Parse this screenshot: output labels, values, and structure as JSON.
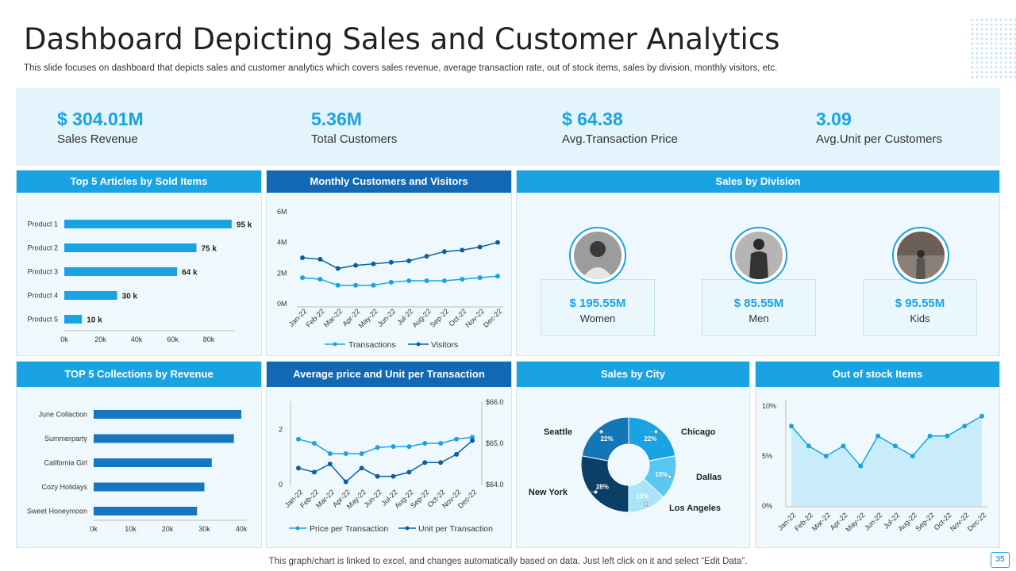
{
  "header": {
    "title": "Dashboard Depicting Sales and Customer Analytics",
    "subtitle": "This slide focuses on dashboard that depicts sales and customer analytics which covers sales revenue, average transaction rate, out of stock items, sales by division, monthly visitors, etc."
  },
  "kpis": [
    {
      "value": "$ 304.01M",
      "label": "Sales Revenue"
    },
    {
      "value": "5.36M",
      "label": "Total Customers"
    },
    {
      "value": "$ 64.38",
      "label": "Avg.Transaction Price"
    },
    {
      "value": "3.09",
      "label": "Avg.Unit per Customers"
    }
  ],
  "division": {
    "title": "Sales by Division",
    "items": [
      {
        "value": "$ 195.55M",
        "label": "Women"
      },
      {
        "value": "$ 85.55M",
        "label": "Men"
      },
      {
        "value": "$ 95.55M",
        "label": "Kids"
      }
    ]
  },
  "footer": {
    "note": "This graph/chart is linked to excel, and changes automatically based on data. Just left click on it and select “Edit Data”.",
    "page": "35"
  },
  "chart_data": [
    {
      "id": "articles",
      "type": "bar",
      "orientation": "horizontal",
      "title": "Top 5 Articles by Sold Items",
      "categories": [
        "Product 1",
        "Product 2",
        "Product 3",
        "Product 4",
        "Product 5"
      ],
      "values": [
        95,
        75,
        64,
        30,
        10
      ],
      "value_labels": [
        "95 k",
        "75 k",
        "64 k",
        "30 k",
        "10 k"
      ],
      "xticks": [
        "0k",
        "20k",
        "40k",
        "60k",
        "80k"
      ],
      "xlim": [
        0,
        100
      ]
    },
    {
      "id": "monthly",
      "type": "line",
      "title": "Monthly Customers and Visitors",
      "categories": [
        "Jan-22",
        "Feb-22",
        "Mar-22",
        "Apr-22",
        "May-22",
        "Jun-22",
        "Jul-22",
        "Aug-22",
        "Sep-22",
        "Oct-22",
        "Nov-22",
        "Dec-22"
      ],
      "series": [
        {
          "name": "Transactions",
          "values": [
            1.7,
            1.6,
            1.2,
            1.2,
            1.2,
            1.4,
            1.5,
            1.5,
            1.5,
            1.6,
            1.7,
            1.8
          ]
        },
        {
          "name": "Visitors",
          "values": [
            3.0,
            2.9,
            2.3,
            2.5,
            2.6,
            2.7,
            2.8,
            3.1,
            3.4,
            3.5,
            3.7,
            4.0
          ]
        }
      ],
      "yticks": [
        "0M",
        "2M",
        "4M",
        "6M"
      ],
      "ylim": [
        0,
        6
      ]
    },
    {
      "id": "collections",
      "type": "bar",
      "orientation": "horizontal",
      "title": "TOP 5 Collections by Revenue",
      "categories": [
        "June Collaction",
        "Summerparty",
        "California Girl",
        "Cozy Holidays",
        "Sweet Honeymoon"
      ],
      "values": [
        40,
        38,
        32,
        30,
        28
      ],
      "xticks": [
        "0k",
        "10k",
        "20k",
        "30k",
        "40k"
      ],
      "xlim": [
        0,
        40
      ]
    },
    {
      "id": "avgprice",
      "type": "line",
      "title": "Average price and Unit per Transaction",
      "categories": [
        "Jan-22",
        "Feb-22",
        "Mar-22",
        "Apr-22",
        "May-22",
        "Jun-22",
        "Jul-22",
        "Aug-22",
        "Sep-22",
        "Oct-22",
        "Nov-22",
        "Dec-22"
      ],
      "series": [
        {
          "name": "Price per Transaction",
          "axis": "right",
          "values": [
            65.1,
            65.0,
            64.75,
            64.75,
            64.75,
            64.9,
            64.92,
            64.92,
            65.0,
            65.0,
            65.1,
            65.15
          ]
        },
        {
          "name": "Unit per Transaction",
          "axis": "left",
          "values": [
            0.6,
            0.45,
            0.75,
            0.1,
            0.6,
            0.3,
            0.3,
            0.45,
            0.8,
            0.8,
            1.1,
            1.6
          ]
        }
      ],
      "yticks_left": [
        "0",
        "2"
      ],
      "ylim_left": [
        0,
        3
      ],
      "yticks_right": [
        "$64.0",
        "$65.0",
        "$66.0"
      ],
      "ylim_right": [
        64,
        66
      ]
    },
    {
      "id": "city",
      "type": "pie",
      "donut": true,
      "title": "Sales by City",
      "slices": [
        {
          "name": "Chicago",
          "value": 22,
          "label": "22%",
          "color": "#1aa3e3"
        },
        {
          "name": "Dallas",
          "value": 15,
          "label": "15%",
          "color": "#5cc6f2"
        },
        {
          "name": "Los Angeles",
          "value": 13,
          "label": "13%",
          "color": "#a9e4f9"
        },
        {
          "name": "New York",
          "value": 28,
          "label": "28%",
          "color": "#0a3f66"
        },
        {
          "name": "Seattle",
          "value": 22,
          "label": "22%",
          "color": "#1476b8"
        }
      ]
    },
    {
      "id": "stock",
      "type": "area",
      "title": "Out of stock Items",
      "categories": [
        "Jan-22",
        "Feb-22",
        "Mar-22",
        "Apr-22",
        "May-22",
        "Jun-22",
        "Jul-22",
        "Aug-22",
        "Sep-22",
        "Oct-22",
        "Nov-22",
        "Dec-22"
      ],
      "values": [
        8,
        6,
        5,
        6,
        4,
        7,
        6,
        5,
        7,
        7,
        8,
        9
      ],
      "yticks": [
        "0%",
        "5%",
        "10%"
      ],
      "ylim": [
        0,
        10
      ]
    }
  ]
}
